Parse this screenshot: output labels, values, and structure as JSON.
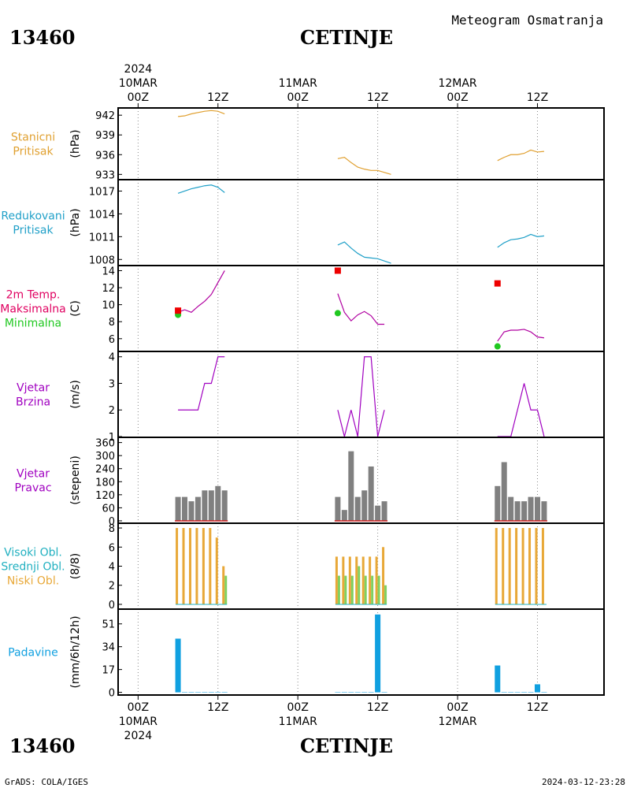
{
  "header": {
    "station_id": "13460",
    "station_name": "CETINJE",
    "title": "Meteogram Osmatranja"
  },
  "footer": {
    "station_id": "13460",
    "station_name": "CETINJE",
    "credit": "GrADS: COLA/IGES",
    "timestamp": "2024-03-12-23:28"
  },
  "time_axis": {
    "ticks": [
      {
        "h": 0,
        "label": "00Z",
        "date": "10MAR",
        "year": "2024"
      },
      {
        "h": 12,
        "label": "12Z"
      },
      {
        "h": 24,
        "label": "00Z",
        "date": "11MAR"
      },
      {
        "h": 36,
        "label": "12Z"
      },
      {
        "h": 48,
        "label": "00Z",
        "date": "12MAR"
      },
      {
        "h": 60,
        "label": "12Z"
      }
    ],
    "range": [
      -3,
      70
    ]
  },
  "colors": {
    "pressure": "#e0a030",
    "reduced_pressure": "#20a0c8",
    "temp_label": "#e00060",
    "max_label": "#e00060",
    "max_marker": "#ee0000",
    "min": "#20c820",
    "temp_line": "#b000a0",
    "wind": "#a000c0",
    "wind_bar": "#808080",
    "high_cloud": "#20b0c0",
    "mid_cloud": "#80d060",
    "low_cloud": "#e8a838",
    "precip": "#10a0e0"
  },
  "chart_data": [
    {
      "type": "line",
      "panel": "station_pressure",
      "label_lines": [
        "Stanicni",
        "Pritisak"
      ],
      "ylabel": "(hPa)",
      "yticks": [
        942,
        939,
        936,
        933
      ],
      "ylim": [
        932.2,
        943.1
      ],
      "series": [
        {
          "segments": [
            [
              [
                6,
                941.8
              ],
              [
                7,
                941.9
              ],
              [
                8,
                942.2
              ],
              [
                9,
                942.4
              ],
              [
                10,
                942.6
              ],
              [
                11,
                942.7
              ],
              [
                12,
                942.6
              ],
              [
                13,
                942.2
              ]
            ],
            [
              [
                30,
                935.4
              ],
              [
                31,
                935.6
              ],
              [
                32,
                934.8
              ],
              [
                33,
                934.1
              ],
              [
                34,
                933.8
              ],
              [
                35,
                933.6
              ],
              [
                36,
                933.6
              ],
              [
                37,
                933.3
              ],
              [
                38,
                933.0
              ]
            ],
            [
              [
                54,
                935.1
              ],
              [
                55,
                935.6
              ],
              [
                56,
                936.0
              ],
              [
                57,
                936.0
              ],
              [
                58,
                936.2
              ],
              [
                59,
                936.7
              ],
              [
                60,
                936.4
              ],
              [
                61,
                936.5
              ]
            ]
          ]
        }
      ]
    },
    {
      "type": "line",
      "panel": "reduced_pressure",
      "label_lines": [
        "Redukovani",
        "Pritisak"
      ],
      "ylabel": "(hPa)",
      "yticks": [
        1017,
        1014,
        1011,
        1008
      ],
      "ylim": [
        1007.2,
        1018.5
      ],
      "series": [
        {
          "segments": [
            [
              [
                6,
                1016.7
              ],
              [
                7,
                1017.0
              ],
              [
                8,
                1017.3
              ],
              [
                9,
                1017.5
              ],
              [
                10,
                1017.7
              ],
              [
                11,
                1017.8
              ],
              [
                12,
                1017.5
              ],
              [
                13,
                1016.8
              ]
            ],
            [
              [
                30,
                1009.9
              ],
              [
                31,
                1010.3
              ],
              [
                32,
                1009.5
              ],
              [
                33,
                1008.8
              ],
              [
                34,
                1008.3
              ],
              [
                35,
                1008.2
              ],
              [
                36,
                1008.1
              ],
              [
                37,
                1007.8
              ],
              [
                38,
                1007.5
              ]
            ],
            [
              [
                54,
                1009.6
              ],
              [
                55,
                1010.2
              ],
              [
                56,
                1010.6
              ],
              [
                57,
                1010.7
              ],
              [
                58,
                1010.9
              ],
              [
                59,
                1011.3
              ],
              [
                60,
                1011.0
              ],
              [
                61,
                1011.1
              ]
            ]
          ]
        }
      ]
    },
    {
      "type": "line",
      "panel": "temperature",
      "label_lines": [
        "2m Temp.",
        "Maksimalna",
        "Minimalna"
      ],
      "ylabel": "(C)",
      "yticks": [
        14,
        12,
        10,
        8,
        6
      ],
      "ylim": [
        4.5,
        14.6
      ],
      "series": [
        {
          "name": "2m Temp.",
          "segments": [
            [
              [
                6,
                9.1
              ],
              [
                7,
                9.4
              ],
              [
                8,
                9.1
              ],
              [
                9,
                9.8
              ],
              [
                10,
                10.4
              ],
              [
                11,
                11.2
              ],
              [
                12,
                12.6
              ],
              [
                13,
                14.0
              ]
            ],
            [
              [
                30,
                11.3
              ],
              [
                31,
                9.1
              ],
              [
                32,
                8.1
              ],
              [
                33,
                8.8
              ],
              [
                34,
                9.2
              ],
              [
                35,
                8.7
              ],
              [
                36,
                7.7
              ],
              [
                37,
                7.7
              ]
            ],
            [
              [
                54,
                5.7
              ],
              [
                55,
                6.8
              ],
              [
                56,
                7.0
              ],
              [
                57,
                7.0
              ],
              [
                58,
                7.1
              ],
              [
                59,
                6.8
              ],
              [
                60,
                6.2
              ],
              [
                61,
                6.1
              ]
            ]
          ]
        },
        {
          "name": "Maksimalna",
          "points": [
            [
              6,
              9.3
            ],
            [
              30,
              14.0
            ],
            [
              54,
              12.5
            ]
          ]
        },
        {
          "name": "Minimalna",
          "points": [
            [
              6,
              8.8
            ],
            [
              30,
              9.0
            ],
            [
              54,
              5.1
            ]
          ]
        }
      ]
    },
    {
      "type": "line",
      "panel": "wind_speed",
      "label_lines": [
        "Vjetar",
        "Brzina"
      ],
      "ylabel": "(m/s)",
      "yticks": [
        4,
        3,
        2,
        1
      ],
      "ylim": [
        0.97,
        4.2
      ],
      "series": [
        {
          "segments": [
            [
              [
                6,
                2
              ],
              [
                7,
                2
              ],
              [
                8,
                2
              ],
              [
                9,
                2
              ],
              [
                10,
                3
              ],
              [
                11,
                3
              ],
              [
                12,
                4
              ],
              [
                13,
                4
              ]
            ],
            [
              [
                30,
                2
              ],
              [
                31,
                1
              ],
              [
                32,
                2
              ],
              [
                33,
                1
              ],
              [
                34,
                4
              ],
              [
                35,
                4
              ],
              [
                36,
                1
              ],
              [
                37,
                2
              ]
            ],
            [
              [
                54,
                1
              ],
              [
                55,
                1
              ],
              [
                56,
                1
              ],
              [
                57,
                2
              ],
              [
                58,
                3
              ],
              [
                59,
                2
              ],
              [
                60,
                2
              ],
              [
                61,
                1
              ]
            ]
          ]
        }
      ]
    },
    {
      "type": "bar",
      "panel": "wind_direction",
      "label_lines": [
        "Vjetar",
        "Pravac"
      ],
      "ylabel": "(stepeni)",
      "yticks": [
        360,
        300,
        240,
        180,
        120,
        60,
        0
      ],
      "ylim": [
        -11,
        384
      ],
      "x": [
        6,
        7,
        8,
        9,
        10,
        11,
        12,
        13,
        30,
        31,
        32,
        33,
        34,
        35,
        36,
        37,
        54,
        55,
        56,
        57,
        58,
        59,
        60,
        61
      ],
      "values": [
        110,
        110,
        90,
        110,
        140,
        140,
        160,
        140,
        110,
        50,
        320,
        110,
        140,
        250,
        70,
        90,
        160,
        270,
        110,
        90,
        90,
        110,
        110,
        90
      ]
    },
    {
      "type": "bar",
      "panel": "cloud",
      "label_lines": [
        "Visoki Obl.",
        "Srednji Obl.",
        "Niski Obl."
      ],
      "ylabel": "(8/8)",
      "yticks": [
        8,
        6,
        4,
        2,
        0
      ],
      "ylim": [
        -0.5,
        8.5
      ],
      "x": [
        6,
        7,
        8,
        9,
        10,
        11,
        12,
        13,
        30,
        31,
        32,
        33,
        34,
        35,
        36,
        37,
        54,
        55,
        56,
        57,
        58,
        59,
        60,
        61
      ],
      "series": [
        {
          "name": "Niski Obl.",
          "values": [
            8,
            8,
            8,
            8,
            8,
            8,
            7,
            4,
            5,
            5,
            5,
            5,
            5,
            5,
            5,
            6,
            8,
            8,
            8,
            8,
            8,
            8,
            8,
            8
          ]
        },
        {
          "name": "Srednji Obl.",
          "values": [
            0,
            0,
            0,
            0,
            0,
            0,
            0,
            3,
            3,
            3,
            3,
            4,
            3,
            3,
            3,
            2,
            0,
            0,
            0,
            0,
            0,
            0,
            0,
            0
          ]
        },
        {
          "name": "Visoki Obl.",
          "values": [
            0,
            0,
            0,
            0,
            0,
            0,
            0,
            0,
            0,
            0,
            0,
            0,
            0,
            0,
            0,
            0,
            0,
            0,
            0,
            0,
            0,
            0,
            0,
            0
          ]
        }
      ]
    },
    {
      "type": "bar",
      "panel": "precipitation",
      "label_lines": [
        "Padavine"
      ],
      "ylabel": "(mm/6h/12h)",
      "yticks": [
        51,
        34,
        17,
        0
      ],
      "ylim": [
        -2,
        62
      ],
      "x": [
        6,
        7,
        8,
        9,
        10,
        11,
        12,
        13,
        30,
        31,
        32,
        33,
        34,
        35,
        36,
        37,
        54,
        55,
        56,
        57,
        58,
        59,
        60,
        61
      ],
      "values": [
        40,
        0.3,
        0.3,
        0.3,
        0.3,
        0.3,
        0.3,
        0.3,
        0.3,
        0.3,
        0.3,
        0.3,
        0.3,
        0.3,
        58,
        0.3,
        20,
        0.3,
        0.3,
        0.3,
        0.3,
        0.3,
        6,
        0.3
      ]
    }
  ]
}
